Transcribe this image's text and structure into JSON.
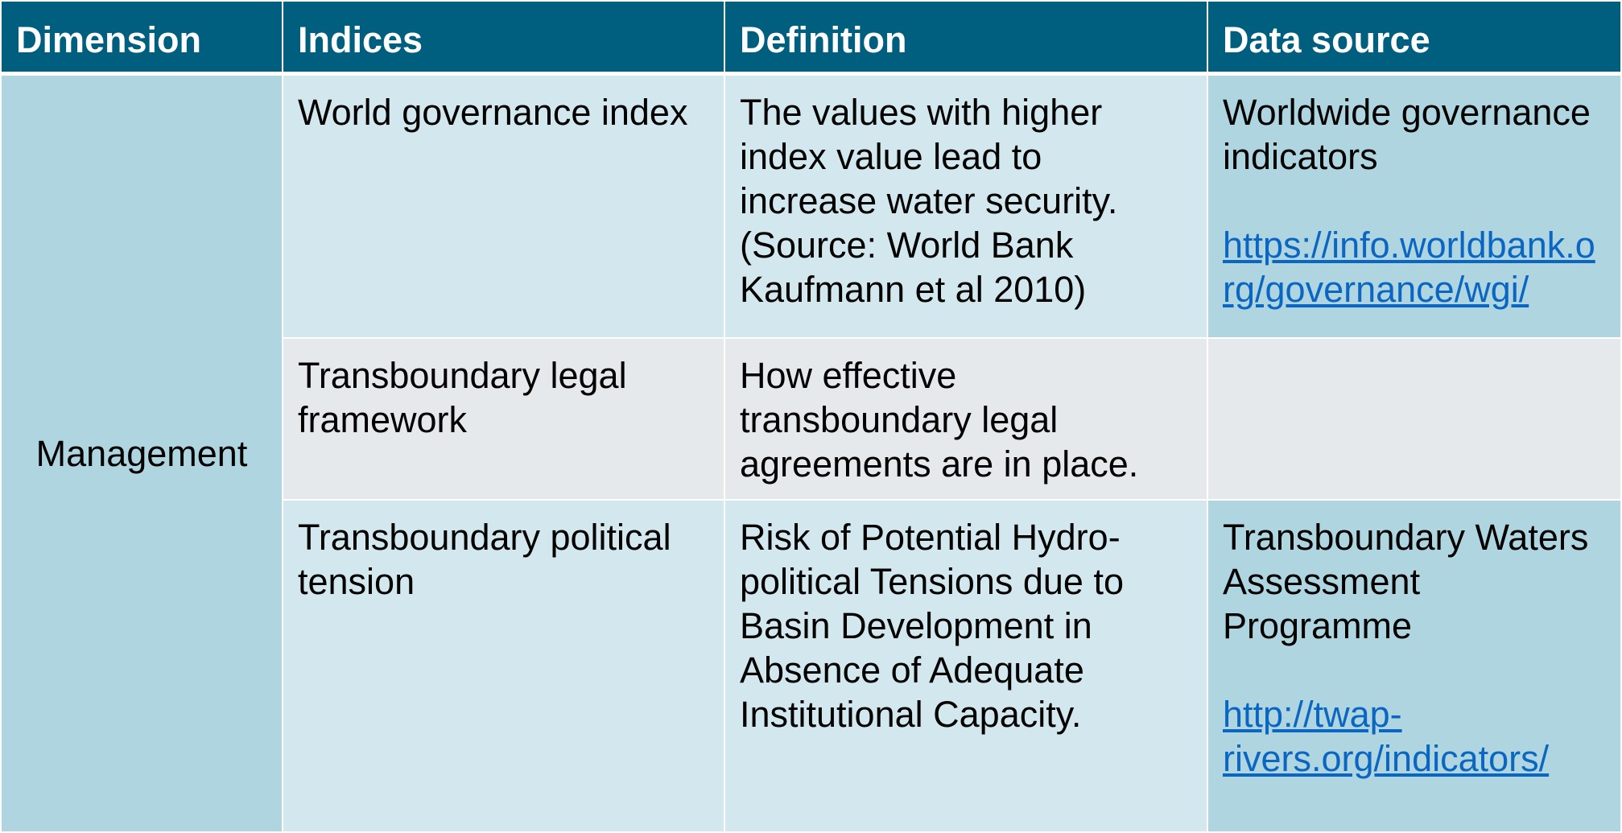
{
  "header": {
    "dimension": "Dimension",
    "indices": "Indices",
    "definition": "Definition",
    "data_source": "Data source"
  },
  "dimension_cell": "Management",
  "rows": [
    {
      "index": [
        "World governance index"
      ],
      "definition": [
        "The values with higher",
        "index value lead to",
        "increase water security.",
        "(Source: World Bank",
        "Kaufmann et al 2010)"
      ],
      "source": [
        "Worldwide governance",
        "indicators"
      ],
      "link": [
        "https://info.worldbank.o",
        "rg/governance/wgi/"
      ]
    },
    {
      "index": [
        "Transboundary legal",
        "framework"
      ],
      "definition": [
        "How effective",
        "transboundary legal",
        "agreements are in place."
      ],
      "source": [],
      "link": []
    },
    {
      "index": [
        "Transboundary political",
        "tension"
      ],
      "definition": [
        "Risk of Potential Hydro-",
        "political Tensions due to",
        "Basin Development in",
        "Absence of Adequate",
        "Institutional Capacity."
      ],
      "source": [
        "Transboundary Waters",
        "Assessment",
        "Programme"
      ],
      "link": [
        "http://twap-",
        "rivers.org/indicators/"
      ]
    }
  ],
  "colors": {
    "header_bg": "#005e7f",
    "row_light": "#d3e8ee",
    "row_dark": "#aed5e0",
    "row_grey": "#e6e9ec",
    "link": "#0b66c2"
  }
}
